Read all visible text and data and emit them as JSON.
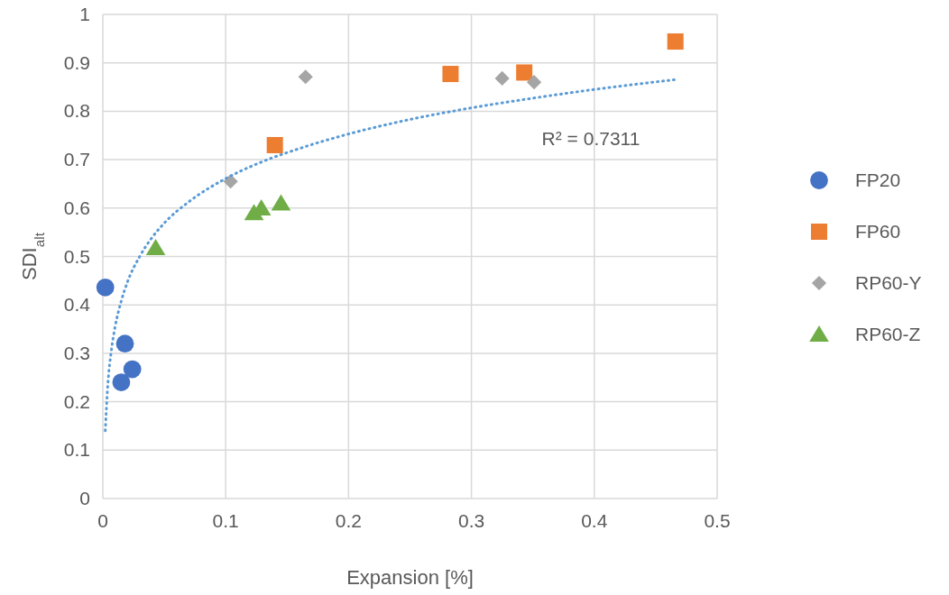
{
  "chart_data": {
    "type": "scatter",
    "xlabel": "Expansion [%]",
    "ylabel": "SDI$_{alt}$",
    "xlim": [
      0,
      0.5
    ],
    "ylim": [
      0,
      1
    ],
    "xticks": [
      0,
      0.1,
      0.2,
      0.3,
      0.4,
      0.5
    ],
    "yticks": [
      0,
      0.1,
      0.2,
      0.3,
      0.4,
      0.5,
      0.6,
      0.7,
      0.8,
      0.9,
      1
    ],
    "grid": true,
    "legend": "right",
    "annotations": [
      "R² = 0.7311"
    ],
    "series": [
      {
        "name": "FP20",
        "color": "#4472c4",
        "marker": "circle",
        "x": [
          0.002,
          0.018,
          0.024,
          0.015
        ],
        "values": [
          0.436,
          0.32,
          0.267,
          0.24
        ]
      },
      {
        "name": "FP60",
        "color": "#ed7d31",
        "marker": "square",
        "x": [
          0.14,
          0.283,
          0.343,
          0.466
        ],
        "values": [
          0.73,
          0.877,
          0.88,
          0.944
        ]
      },
      {
        "name": "RP60-Y",
        "color": "#a5a5a5",
        "marker": "diamond",
        "x": [
          0.104,
          0.165,
          0.325,
          0.351
        ],
        "values": [
          0.655,
          0.871,
          0.868,
          0.86
        ]
      },
      {
        "name": "RP60-Z",
        "color": "#70ad47",
        "marker": "triangle",
        "x": [
          0.043,
          0.123,
          0.129,
          0.145
        ],
        "values": [
          0.518,
          0.59,
          0.6,
          0.61
        ]
      },
      {
        "type": "line",
        "color": "#5b9bd5",
        "marker": "none",
        "line_style": "dotted",
        "x": [
          0.002,
          0.004,
          0.007,
          0.01,
          0.015,
          0.02,
          0.03,
          0.04,
          0.05,
          0.07,
          0.1,
          0.13,
          0.16,
          0.2,
          0.25,
          0.3,
          0.35,
          0.4,
          0.465
        ],
        "values": [
          0.14,
          0.233,
          0.307,
          0.355,
          0.408,
          0.447,
          0.5,
          0.539,
          0.569,
          0.613,
          0.661,
          0.696,
          0.723,
          0.753,
          0.783,
          0.807,
          0.827,
          0.845,
          0.865
        ]
      }
    ]
  }
}
